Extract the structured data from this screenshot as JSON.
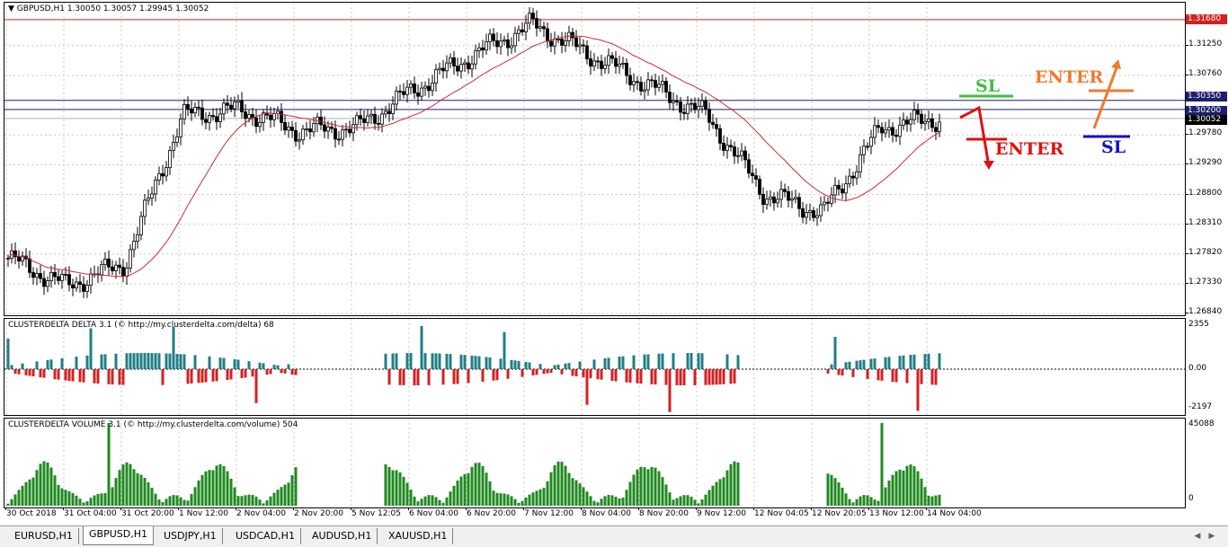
{
  "chart_header": {
    "symbol_timeframe": "GBPUSD,H1",
    "ohlc": "1.30050 1.30057 1.29945 1.30052"
  },
  "main_price_labels": [
    "1.31250",
    "1.30760",
    "1.29780",
    "1.29290",
    "1.28800",
    "1.28310",
    "1.27820",
    "1.27330",
    "1.26840"
  ],
  "price_tags": {
    "resistance": "1.31680",
    "upper_level": "1.30350",
    "lower_level": "1.30200",
    "current": "1.30052"
  },
  "colors": {
    "bull_candle": "#000000",
    "moving_average": "#cc2b2b",
    "resistance_line": "#d42020",
    "level_line": "#1b1f6e",
    "delta_positive": "#1f7f86",
    "delta_negative": "#d42020",
    "volume_bar": "#1f8a1f",
    "sl_green": "#3fbf3f",
    "enter_red": "#e01010",
    "enter_orange": "#f07a30",
    "sl_blue": "#1010d0"
  },
  "annotations": {
    "sl_green": "SL",
    "enter_red": "ENTER",
    "enter_orange": "ENTER",
    "sl_blue": "SL"
  },
  "delta_indicator": {
    "title": "CLUSTERDELTA DELTA 3.1 (© http://my.clusterdelta.com/delta) 68",
    "axis_labels": [
      "2355",
      "0.00",
      "-2197"
    ]
  },
  "volume_indicator": {
    "title": "CLUSTERDELTA VOLUME 3.1 (© http://my.clusterdelta.com/volume) 504",
    "axis_labels": [
      "45088",
      "0"
    ]
  },
  "time_labels": [
    "30 Oct 2018",
    "31 Oct 04:00",
    "31 Oct 20:00",
    "1 Nov 12:00",
    "2 Nov 04:00",
    "2 Nov 20:00",
    "5 Nov 12:05",
    "6 Nov 04:00",
    "6 Nov 20:00",
    "7 Nov 12:00",
    "8 Nov 04:00",
    "8 Nov 20:00",
    "9 Nov 12:00",
    "12 Nov 04:05",
    "12 Nov 20:05",
    "13 Nov 12:00",
    "14 Nov 04:00"
  ],
  "tabs": [
    {
      "label": "EURUSD,H1",
      "active": false
    },
    {
      "label": "GBPUSD,H1",
      "active": true
    },
    {
      "label": "USDJPY,H1",
      "active": false
    },
    {
      "label": "USDCAD,H1",
      "active": false
    },
    {
      "label": "AUDUSD,H1",
      "active": false
    },
    {
      "label": "XAUUSD,H1",
      "active": false
    }
  ],
  "chart_data": {
    "type": "line",
    "series": [
      {
        "name": "GBPUSD,H1",
        "x": [
          "30 Oct 2018",
          "31 Oct 04:00",
          "31 Oct 20:00",
          "1 Nov 12:00",
          "2 Nov 04:00",
          "2 Nov 20:00",
          "5 Nov 12:05",
          "6 Nov 04:00",
          "6 Nov 20:00",
          "7 Nov 12:00",
          "8 Nov 04:00",
          "8 Nov 20:00",
          "9 Nov 12:00",
          "12 Nov 04:05",
          "12 Nov 20:05",
          "13 Nov 12:00",
          "14 Nov 04:00"
        ],
        "values": [
          1.2775,
          1.273,
          1.2765,
          1.301,
          1.302,
          1.2985,
          1.299,
          1.3055,
          1.311,
          1.316,
          1.311,
          1.306,
          1.301,
          1.288,
          1.285,
          1.299,
          1.3005
        ]
      }
    ],
    "ylim": [
      1.2684,
      1.319
    ]
  }
}
